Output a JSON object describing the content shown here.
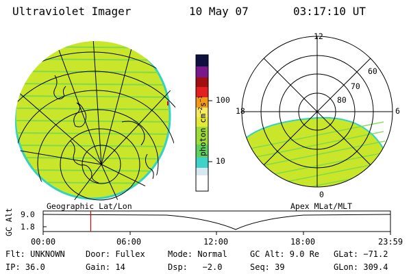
{
  "header": {
    "instrument": "Ultraviolet Imager",
    "date": "10 May 07",
    "time": "03:17:10 UT"
  },
  "panels": {
    "left_caption": "Geographic Lat/Lon",
    "right_caption": "Apex MLat/MLT"
  },
  "polar_labels": {
    "mlt_top": "12",
    "mlt_left": "18",
    "mlt_right": "6",
    "mlt_bottom": "0",
    "lat_60": "60",
    "lat_70": "70",
    "lat_80": "80"
  },
  "colorbar": {
    "unit_label": "photon cm",
    "unit_sup1": "−2",
    "unit_mid": "s",
    "unit_sup2": "−1",
    "ticks": [
      "100",
      "10"
    ],
    "scale": "log"
  },
  "altitude_plot": {
    "ylabel": "GC Alt",
    "y_ticks": [
      "9.0",
      "1.8"
    ],
    "x_ticks": [
      "00:00",
      "06:00",
      "12:00",
      "18:00",
      "23:59"
    ],
    "current_time_hours": 3.286,
    "min_time_hours": 13.3,
    "marker_color": "#e00000"
  },
  "info": {
    "flt": "Flt: UNKNOWN",
    "door": "Door: Fullex",
    "mode": "Mode: Normal",
    "gc_alt": "GC Alt: 9.0 Re",
    "glat": "GLat: −71.2",
    "ip": "IP: 36.0",
    "gain": "Gain: 14",
    "dsp": "Dsp:   −2.0",
    "seq": "Seq: 39",
    "glon": "GLon: 309.4"
  },
  "colors": {
    "fill": "#c9e62a",
    "edge": "#2fd3c4",
    "stripe": "#6fd04a"
  }
}
